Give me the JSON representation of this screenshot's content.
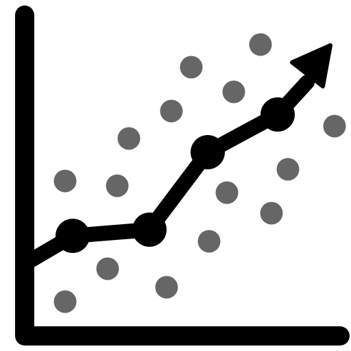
{
  "icon": {
    "name": "scatter-trend-chart-icon",
    "colors": {
      "axis": "#000000",
      "trend": "#000000",
      "scatter": "#666666",
      "background": "#ffffff"
    }
  }
}
